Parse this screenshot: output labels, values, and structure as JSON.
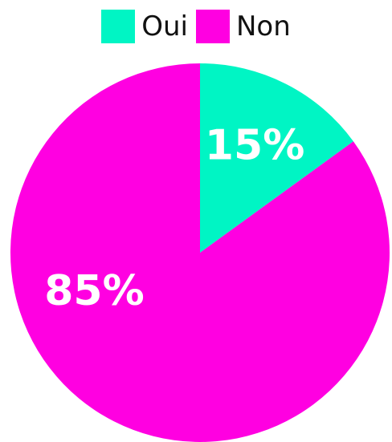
{
  "chart_data": {
    "type": "pie",
    "title": "",
    "legend_position": "top",
    "slices": [
      {
        "label": "Oui",
        "value": 15,
        "display": "15%",
        "color": "#00F5C4"
      },
      {
        "label": "Non",
        "value": 85,
        "display": "85%",
        "color": "#FF00E1"
      }
    ]
  }
}
